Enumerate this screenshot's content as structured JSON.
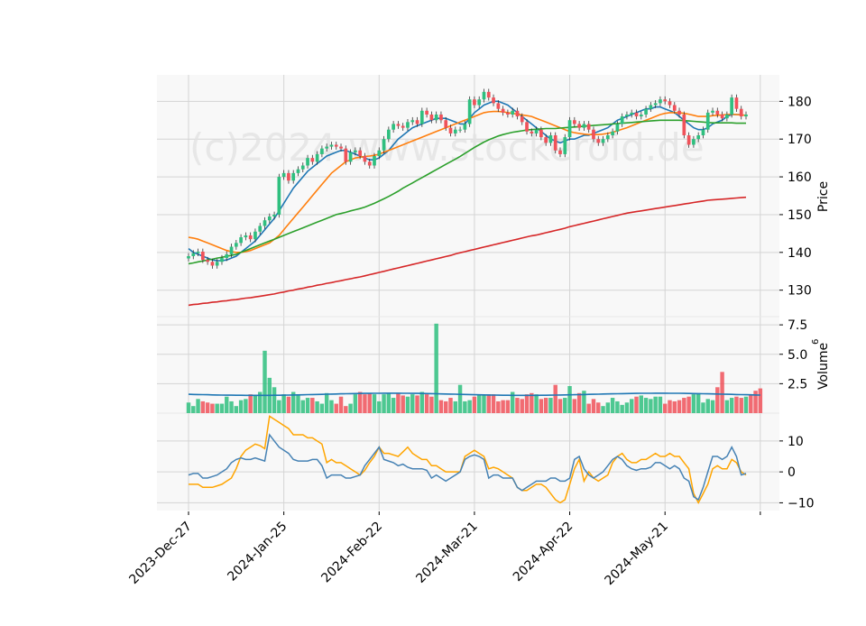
{
  "chart_data": {
    "type": "candlestick",
    "watermark": "(c)2024 www.stockeroid.de",
    "x_ticks": [
      "2023-Dec-27",
      "2024-Jan-25",
      "2024-Feb-22",
      "2024-Mar-21",
      "2024-Apr-22",
      "2024-May-21"
    ],
    "price_panel": {
      "ylabel": "Price",
      "yticks": [
        130,
        140,
        150,
        160,
        170,
        180
      ],
      "ylim": [
        123,
        187
      ],
      "up_color": "#2fbf7f",
      "down_color": "#f0525a",
      "close": [
        139,
        139.8,
        140.2,
        138,
        137.5,
        136.5,
        137.5,
        138.5,
        139.5,
        141.5,
        142.5,
        144,
        144.5,
        143.5,
        145.5,
        147,
        148.5,
        149.5,
        150,
        160,
        161,
        159,
        161,
        162,
        163,
        165,
        164,
        166,
        167.5,
        168,
        168.5,
        168,
        167.5,
        164,
        166.5,
        167,
        165.5,
        164,
        163,
        165.5,
        167,
        170,
        172.5,
        174,
        173.5,
        173,
        174.5,
        175,
        174,
        177.5,
        176.5,
        175,
        176.5,
        175,
        173,
        171.5,
        172.5,
        172.5,
        174,
        180.5,
        179,
        180.5,
        182.5,
        181,
        179.5,
        178,
        177,
        176.5,
        177.5,
        176,
        174.5,
        172,
        171.5,
        172.5,
        170.5,
        169,
        171,
        167,
        166,
        170.5,
        175,
        174,
        173,
        174,
        172.5,
        170,
        169,
        170,
        171,
        172,
        174,
        176,
        176.5,
        177,
        176,
        176.5,
        178,
        179,
        179.5,
        180.5,
        180,
        179,
        177.5,
        176.5,
        171,
        168.5,
        170,
        171,
        172.5,
        177,
        177.5,
        176.5,
        175.5,
        176.5,
        181,
        178,
        176,
        176.5
      ],
      "moving_averages": [
        {
          "color": "#1f77b4",
          "values": [
            141,
            140,
            139.5,
            139,
            138.5,
            138,
            137.8,
            137.8,
            138,
            138.5,
            139,
            140,
            141,
            142,
            143,
            144.5,
            146,
            147.5,
            149,
            151,
            153,
            155,
            157,
            158.5,
            160,
            161.5,
            162.5,
            163.5,
            164.5,
            165.5,
            166,
            166.5,
            167,
            167,
            166.5,
            166,
            165.5,
            165,
            164.5,
            164.5,
            165,
            166,
            167,
            168.5,
            170,
            171,
            172,
            173,
            173.5,
            174,
            174.5,
            175,
            175.5,
            175.5,
            175.5,
            175,
            174.5,
            174,
            174,
            175.5,
            177,
            178,
            179,
            179.5,
            180,
            180,
            179.5,
            179,
            178,
            177,
            176,
            175,
            174,
            173,
            172,
            171,
            170,
            169.5,
            169,
            169.5,
            170,
            170,
            170.5,
            171,
            171,
            171.5,
            172,
            172.5,
            173,
            174,
            175,
            175.5,
            176,
            176.5,
            177,
            177.5,
            178,
            178,
            178.5,
            178.5,
            178,
            177.5,
            177,
            176,
            175,
            174,
            173,
            172.5,
            172.5,
            173,
            174,
            174.5,
            175,
            176,
            176.5,
            176.5,
            176.5
          ]
        },
        {
          "color": "#ff7f0e",
          "values": [
            144,
            143.8,
            143.5,
            143,
            142.5,
            142,
            141.5,
            141,
            140.5,
            140.2,
            140,
            140,
            140.2,
            140.5,
            141,
            141.5,
            142,
            142.5,
            143.5,
            144.5,
            146,
            147.5,
            149,
            150.5,
            152,
            153.5,
            155,
            156.5,
            158,
            159.5,
            161,
            162,
            163,
            164,
            164.5,
            165,
            165.2,
            165.4,
            165.5,
            165.7,
            166,
            166.5,
            167,
            167.5,
            168,
            168.5,
            169,
            169.5,
            170,
            170.5,
            171,
            171.5,
            172,
            172.5,
            173,
            173.5,
            174,
            174.5,
            175,
            175.5,
            176,
            176.5,
            177,
            177.2,
            177.3,
            177.3,
            177.2,
            177,
            176.8,
            176.6,
            176.4,
            176.2,
            176,
            175.5,
            175,
            174.5,
            174,
            173.5,
            173,
            172.5,
            172,
            171.7,
            171.5,
            171.3,
            171.2,
            171.2,
            171.2,
            171.3,
            171.5,
            171.8,
            172.2,
            172.6,
            173,
            173.5,
            174,
            174.5,
            175,
            175.5,
            176,
            176.5,
            176.8,
            177,
            177,
            177,
            176.8,
            176.6,
            176.3,
            176,
            176,
            176,
            176.2,
            176.3,
            176.4,
            176.5,
            176.6,
            176.5,
            176.4,
            176.3
          ]
        },
        {
          "color": "#2ca02c",
          "values": [
            137,
            137.2,
            137.5,
            137.7,
            138,
            138.2,
            138.5,
            138.7,
            139,
            139.2,
            139.5,
            140,
            140.5,
            141,
            141.5,
            142,
            142.5,
            143,
            143.5,
            144,
            144.5,
            145,
            145.5,
            146,
            146.5,
            147,
            147.5,
            148,
            148.5,
            149,
            149.5,
            150,
            150.3,
            150.6,
            151,
            151.3,
            151.6,
            152,
            152.5,
            153,
            153.6,
            154.2,
            154.8,
            155.5,
            156.2,
            157,
            157.7,
            158.4,
            159.1,
            159.8,
            160.5,
            161.2,
            161.9,
            162.6,
            163.3,
            164,
            164.7,
            165.4,
            166.2,
            167,
            167.8,
            168.5,
            169.2,
            169.8,
            170.3,
            170.8,
            171.2,
            171.5,
            171.8,
            172,
            172.2,
            172.4,
            172.5,
            172.6,
            172.7,
            172.8,
            172.8,
            172.8,
            172.9,
            173,
            173.1,
            173.2,
            173.3,
            173.4,
            173.5,
            173.6,
            173.7,
            173.8,
            173.9,
            174,
            174.1,
            174.2,
            174.3,
            174.4,
            174.5,
            174.6,
            174.7,
            174.8,
            174.9,
            175,
            175,
            175,
            175,
            175,
            174.9,
            174.8,
            174.7,
            174.6,
            174.5,
            174.4,
            174.3,
            174.3,
            174.3,
            174.3,
            174.3,
            174.2,
            174.2,
            174.2
          ]
        },
        {
          "color": "#d62728",
          "values": [
            126,
            126.2,
            126.3,
            126.5,
            126.6,
            126.8,
            126.9,
            127.1,
            127.2,
            127.4,
            127.5,
            127.7,
            127.9,
            128,
            128.2,
            128.4,
            128.6,
            128.8,
            129,
            129.3,
            129.5,
            129.8,
            130,
            130.3,
            130.5,
            130.8,
            131,
            131.3,
            131.5,
            131.8,
            132,
            132.3,
            132.5,
            132.8,
            133,
            133.3,
            133.5,
            133.8,
            134.1,
            134.4,
            134.7,
            135,
            135.3,
            135.6,
            135.9,
            136.2,
            136.5,
            136.8,
            137.1,
            137.4,
            137.7,
            138,
            138.3,
            138.6,
            138.9,
            139.2,
            139.6,
            139.9,
            140.2,
            140.5,
            140.8,
            141.1,
            141.4,
            141.7,
            142,
            142.3,
            142.6,
            142.9,
            143.2,
            143.5,
            143.8,
            144.1,
            144.4,
            144.6,
            144.9,
            145.2,
            145.5,
            145.8,
            146.1,
            146.4,
            146.8,
            147.1,
            147.4,
            147.7,
            148,
            148.3,
            148.6,
            148.9,
            149.2,
            149.5,
            149.8,
            150.1,
            150.4,
            150.6,
            150.8,
            151,
            151.2,
            151.4,
            151.6,
            151.8,
            152,
            152.2,
            152.4,
            152.6,
            152.8,
            153,
            153.2,
            153.4,
            153.6,
            153.8,
            153.9,
            154,
            154.1,
            154.2,
            154.3,
            154.4,
            154.5,
            154.6
          ]
        }
      ]
    },
    "volume_panel": {
      "ylabel": "Volume",
      "ylabel_exponent": "6",
      "yticks": [
        2.5,
        5.0,
        7.5
      ],
      "ytick_labels": [
        "2.5",
        "5.0",
        "7.5"
      ],
      "ylim": [
        0,
        8.2
      ],
      "values": [
        0.9,
        0.6,
        1.2,
        1.0,
        0.9,
        0.8,
        0.8,
        0.8,
        1.4,
        1.0,
        0.6,
        1.1,
        1.2,
        1.6,
        1.5,
        1.8,
        5.3,
        3.0,
        2.2,
        1.1,
        1.6,
        1.4,
        1.8,
        1.6,
        1.1,
        1.3,
        1.3,
        1.0,
        0.8,
        1.7,
        1.1,
        0.8,
        1.4,
        0.6,
        0.8,
        1.6,
        1.8,
        1.6,
        1.7,
        1.6,
        1.0,
        1.6,
        1.7,
        1.3,
        1.7,
        1.5,
        1.4,
        1.6,
        1.5,
        1.8,
        1.6,
        1.4,
        7.6,
        1.1,
        1.0,
        1.3,
        1.0,
        2.4,
        1.0,
        1.1,
        1.4,
        1.5,
        1.5,
        1.6,
        1.6,
        1.0,
        1.1,
        1.1,
        1.8,
        1.3,
        1.2,
        1.6,
        1.7,
        1.6,
        1.2,
        1.3,
        1.3,
        2.4,
        1.2,
        1.3,
        2.3,
        1.2,
        1.7,
        1.9,
        0.8,
        1.2,
        0.9,
        0.6,
        0.9,
        1.3,
        1.0,
        0.7,
        0.9,
        1.2,
        1.4,
        1.5,
        1.3,
        1.2,
        1.4,
        1.4,
        0.8,
        1.1,
        1.0,
        1.1,
        1.3,
        1.4,
        1.6,
        1.7,
        0.9,
        1.2,
        1.1,
        2.2,
        3.5,
        1.1,
        1.3,
        1.4,
        1.3,
        1.4,
        1.6,
        1.9,
        2.1
      ],
      "avg_color": "#1f77b4",
      "avg_level": 1.6
    },
    "macd_panel": {
      "yticks": [
        -10,
        0,
        10
      ],
      "ytick_labels": [
        "−10",
        "0",
        "10"
      ],
      "ylim": [
        -12.5,
        19
      ],
      "macd_color": "#4682b4",
      "signal_color": "#ffa500",
      "macd": [
        -1,
        -0.5,
        -0.5,
        -2,
        -2,
        -1.5,
        -1,
        0,
        1,
        3,
        4,
        4.5,
        4,
        4,
        4.5,
        4,
        3.5,
        12,
        10,
        8,
        7,
        6,
        4,
        3.5,
        3.5,
        3.5,
        4,
        4,
        2,
        -2,
        -1,
        -1,
        -1,
        -2,
        -2,
        -1.5,
        -1,
        2,
        4,
        6,
        8,
        4,
        3.5,
        3,
        2,
        2.5,
        1.5,
        1,
        1,
        1,
        0.5,
        -2,
        -1,
        -2,
        -3,
        -2,
        -1,
        0,
        4,
        5,
        5.5,
        5,
        4,
        -2,
        -1,
        -1,
        -2,
        -2,
        -2,
        -5,
        -6,
        -5,
        -4,
        -3,
        -3,
        -3,
        -2,
        -2,
        -3,
        -3,
        -2,
        4,
        5,
        1,
        -1,
        -2,
        -1,
        0,
        2,
        4,
        5,
        4,
        2,
        1,
        0.5,
        1,
        1,
        1.5,
        3,
        3,
        2,
        1,
        2,
        1,
        -2,
        -3,
        -8,
        -9,
        -5,
        0,
        5,
        5,
        4,
        5,
        8,
        5,
        -1,
        -0.5
      ],
      "signal": [
        -4,
        -4,
        -4,
        -5,
        -5,
        -5,
        -4.5,
        -4,
        -3,
        -2,
        1,
        5,
        7,
        8,
        9,
        8.5,
        7.5,
        18,
        17,
        16,
        15,
        14,
        12,
        12,
        12,
        11,
        11,
        10,
        9,
        3,
        4,
        3,
        3,
        2,
        1,
        0,
        -1,
        0.5,
        3,
        5,
        8,
        6,
        6,
        5.5,
        5,
        6.5,
        8,
        6,
        5,
        4,
        4,
        2,
        2,
        1,
        0,
        0,
        0,
        0,
        5,
        6,
        7,
        6,
        5,
        1,
        1.5,
        1,
        0,
        -1,
        -2,
        -5,
        -6,
        -6,
        -5,
        -4,
        -4,
        -5,
        -7,
        -9,
        -10,
        -9,
        -4,
        1,
        4,
        -3,
        0,
        -2,
        -3,
        -2,
        -1,
        3,
        5,
        6,
        4,
        3,
        3,
        4,
        4,
        5,
        6,
        5,
        5,
        6,
        5,
        5,
        3,
        1,
        -7,
        -10,
        -7,
        -4,
        1,
        2,
        1,
        1,
        4,
        3,
        0,
        -1
      ]
    }
  }
}
